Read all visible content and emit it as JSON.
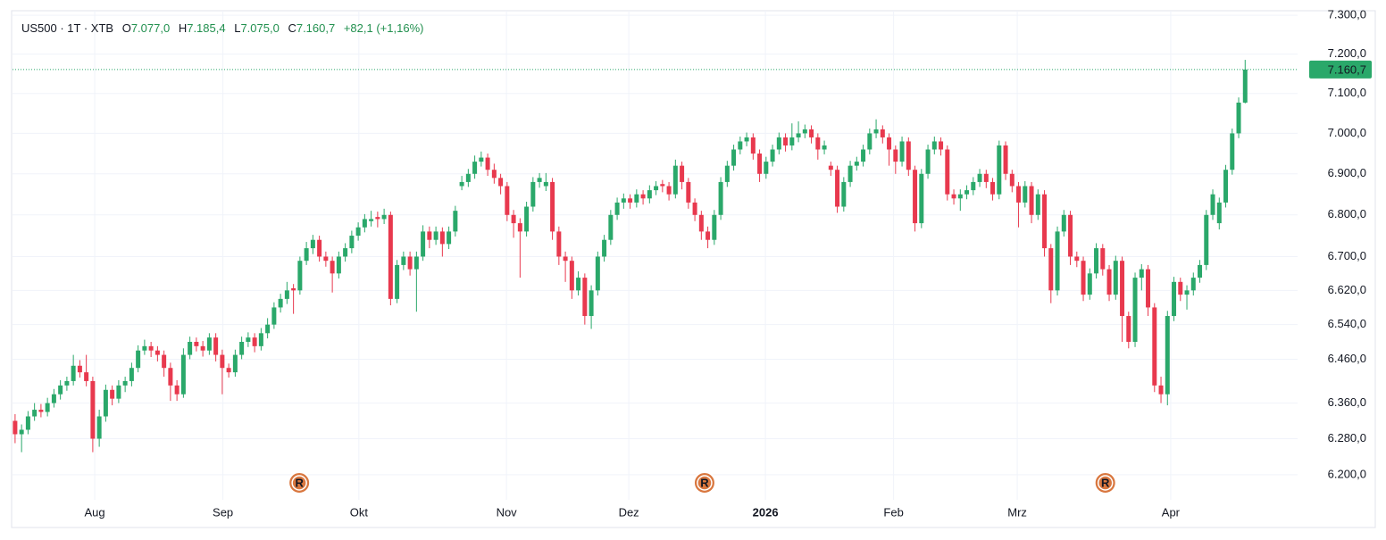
{
  "chart_data": {
    "type": "candlestick",
    "legend": {
      "symbol": "US500 · 1T · XTB",
      "o_key": "O",
      "o": "7.077,0",
      "h_key": "H",
      "h": "7.185,4",
      "l_key": "L",
      "l": "7.075,0",
      "c_key": "C",
      "c": "7.160,7",
      "change": "+82,1 (+1,16%)"
    },
    "last_price_label": "7.160,7",
    "up_color": "#2aa86a",
    "down_color": "#e8394e",
    "log_scale": true,
    "grid": true,
    "ylim": [
      6145,
      7312
    ],
    "yticks": [
      {
        "value": 6200,
        "label": "6.200,0"
      },
      {
        "value": 6280,
        "label": "6.280,0"
      },
      {
        "value": 6360,
        "label": "6.360,0"
      },
      {
        "value": 6460,
        "label": "6.460,0"
      },
      {
        "value": 6540,
        "label": "6.540,0"
      },
      {
        "value": 6620,
        "label": "6.620,0"
      },
      {
        "value": 6700,
        "label": "6.700,0"
      },
      {
        "value": 6800,
        "label": "6.800,0"
      },
      {
        "value": 6900,
        "label": "6.900,0"
      },
      {
        "value": 7000,
        "label": "7.000,0"
      },
      {
        "value": 7100,
        "label": "7.100,0"
      },
      {
        "value": 7200,
        "label": "7.200,0"
      },
      {
        "value": 7300,
        "label": "7.300,0"
      }
    ],
    "xlim": [
      -0.4,
      198.1
    ],
    "xticks": [
      {
        "value": 12.3,
        "label": "Aug"
      },
      {
        "value": 32.1,
        "label": "Sep"
      },
      {
        "value": 53.1,
        "label": "Okt"
      },
      {
        "value": 75.9,
        "label": "Nov"
      },
      {
        "value": 94.8,
        "label": "Dez"
      },
      {
        "value": 115.9,
        "label": "2026",
        "bold": true
      },
      {
        "value": 135.7,
        "label": "Feb"
      },
      {
        "value": 154.8,
        "label": "Mrz"
      },
      {
        "value": 178.5,
        "label": "Apr"
      }
    ],
    "events": [
      {
        "x": 43.9,
        "label": "R"
      },
      {
        "x": 106.5,
        "label": "R"
      },
      {
        "x": 168.4,
        "label": "R"
      }
    ],
    "ohlc": [
      [
        6320,
        6335,
        6270,
        6290
      ],
      [
        6290,
        6312,
        6250,
        6300
      ],
      [
        6300,
        6342,
        6290,
        6330
      ],
      [
        6330,
        6360,
        6320,
        6345
      ],
      [
        6345,
        6358,
        6328,
        6340
      ],
      [
        6340,
        6372,
        6330,
        6360
      ],
      [
        6360,
        6392,
        6350,
        6380
      ],
      [
        6380,
        6412,
        6368,
        6400
      ],
      [
        6400,
        6420,
        6388,
        6410
      ],
      [
        6410,
        6470,
        6400,
        6445
      ],
      [
        6445,
        6458,
        6418,
        6430
      ],
      [
        6430,
        6470,
        6398,
        6410
      ],
      [
        6410,
        6420,
        6250,
        6280
      ],
      [
        6280,
        6345,
        6262,
        6330
      ],
      [
        6330,
        6402,
        6318,
        6390
      ],
      [
        6390,
        6400,
        6355,
        6370
      ],
      [
        6370,
        6412,
        6360,
        6400
      ],
      [
        6400,
        6420,
        6385,
        6410
      ],
      [
        6410,
        6452,
        6398,
        6440
      ],
      [
        6440,
        6492,
        6430,
        6480
      ],
      [
        6480,
        6505,
        6470,
        6490
      ],
      [
        6490,
        6500,
        6465,
        6480
      ],
      [
        6480,
        6490,
        6455,
        6470
      ],
      [
        6470,
        6480,
        6420,
        6440
      ],
      [
        6440,
        6452,
        6365,
        6400
      ],
      [
        6400,
        6412,
        6365,
        6380
      ],
      [
        6380,
        6485,
        6372,
        6470
      ],
      [
        6470,
        6512,
        6460,
        6500
      ],
      [
        6500,
        6510,
        6478,
        6490
      ],
      [
        6490,
        6502,
        6466,
        6480
      ],
      [
        6480,
        6520,
        6470,
        6510
      ],
      [
        6510,
        6520,
        6455,
        6470
      ],
      [
        6470,
        6482,
        6380,
        6440
      ],
      [
        6440,
        6450,
        6418,
        6430
      ],
      [
        6430,
        6482,
        6420,
        6470
      ],
      [
        6470,
        6512,
        6460,
        6500
      ],
      [
        6500,
        6522,
        6488,
        6510
      ],
      [
        6510,
        6520,
        6476,
        6490
      ],
      [
        6490,
        6532,
        6480,
        6520
      ],
      [
        6520,
        6555,
        6508,
        6540
      ],
      [
        6540,
        6592,
        6530,
        6580
      ],
      [
        6580,
        6612,
        6568,
        6600
      ],
      [
        6600,
        6640,
        6588,
        6620
      ],
      [
        6625,
        6635,
        6565,
        6620
      ],
      [
        6620,
        6700,
        6610,
        6690
      ],
      [
        6690,
        6735,
        6680,
        6720
      ],
      [
        6720,
        6752,
        6706,
        6740
      ],
      [
        6740,
        6750,
        6688,
        6700
      ],
      [
        6700,
        6712,
        6676,
        6690
      ],
      [
        6690,
        6700,
        6615,
        6660
      ],
      [
        6660,
        6712,
        6648,
        6700
      ],
      [
        6700,
        6732,
        6688,
        6720
      ],
      [
        6720,
        6762,
        6708,
        6750
      ],
      [
        6750,
        6782,
        6738,
        6770
      ],
      [
        6770,
        6802,
        6758,
        6790
      ],
      [
        6785,
        6810,
        6772,
        6790
      ],
      [
        6795,
        6808,
        6770,
        6790
      ],
      [
        6790,
        6815,
        6778,
        6800
      ],
      [
        6800,
        6808,
        6585,
        6600
      ],
      [
        6600,
        6692,
        6590,
        6680
      ],
      [
        6680,
        6712,
        6668,
        6700
      ],
      [
        6700,
        6712,
        6655,
        6670
      ],
      [
        6670,
        6712,
        6570,
        6700
      ],
      [
        6700,
        6775,
        6690,
        6760
      ],
      [
        6760,
        6772,
        6720,
        6740
      ],
      [
        6740,
        6772,
        6728,
        6760
      ],
      [
        6760,
        6770,
        6700,
        6730
      ],
      [
        6730,
        6772,
        6718,
        6760
      ],
      [
        6760,
        6822,
        6748,
        6810
      ],
      [
        6870,
        6895,
        6860,
        6880
      ],
      [
        6880,
        6912,
        6868,
        6900
      ],
      [
        6900,
        6945,
        6888,
        6930
      ],
      [
        6930,
        6955,
        6918,
        6940
      ],
      [
        6940,
        6950,
        6895,
        6910
      ],
      [
        6910,
        6925,
        6876,
        6890
      ],
      [
        6890,
        6900,
        6850,
        6870
      ],
      [
        6870,
        6880,
        6785,
        6800
      ],
      [
        6800,
        6812,
        6745,
        6780
      ],
      [
        6780,
        6792,
        6650,
        6760
      ],
      [
        6760,
        6832,
        6748,
        6820
      ],
      [
        6820,
        6892,
        6808,
        6880
      ],
      [
        6880,
        6902,
        6866,
        6890
      ],
      [
        6870,
        6902,
        6858,
        6880
      ],
      [
        6880,
        6890,
        6740,
        6760
      ],
      [
        6760,
        6772,
        6680,
        6700
      ],
      [
        6700,
        6712,
        6640,
        6690
      ],
      [
        6690,
        6700,
        6600,
        6620
      ],
      [
        6620,
        6665,
        6608,
        6650
      ],
      [
        6650,
        6660,
        6540,
        6560
      ],
      [
        6560,
        6632,
        6530,
        6620
      ],
      [
        6620,
        6712,
        6608,
        6700
      ],
      [
        6700,
        6752,
        6688,
        6740
      ],
      [
        6740,
        6812,
        6728,
        6800
      ],
      [
        6800,
        6842,
        6788,
        6830
      ],
      [
        6830,
        6852,
        6815,
        6840
      ],
      [
        6840,
        6850,
        6815,
        6830
      ],
      [
        6830,
        6862,
        6818,
        6850
      ],
      [
        6850,
        6860,
        6825,
        6840
      ],
      [
        6840,
        6872,
        6828,
        6860
      ],
      [
        6860,
        6882,
        6848,
        6870
      ],
      [
        6875,
        6885,
        6855,
        6870
      ],
      [
        6870,
        6880,
        6835,
        6850
      ],
      [
        6850,
        6935,
        6840,
        6920
      ],
      [
        6920,
        6930,
        6862,
        6880
      ],
      [
        6880,
        6890,
        6815,
        6830
      ],
      [
        6830,
        6840,
        6785,
        6800
      ],
      [
        6800,
        6810,
        6740,
        6760
      ],
      [
        6760,
        6772,
        6720,
        6740
      ],
      [
        6740,
        6812,
        6728,
        6800
      ],
      [
        6800,
        6892,
        6788,
        6880
      ],
      [
        6880,
        6932,
        6868,
        6920
      ],
      [
        6920,
        6972,
        6908,
        6960
      ],
      [
        6960,
        6992,
        6948,
        6980
      ],
      [
        6980,
        7002,
        6968,
        6990
      ],
      [
        6990,
        7000,
        6935,
        6950
      ],
      [
        6950,
        6960,
        6880,
        6900
      ],
      [
        6900,
        6942,
        6888,
        6930
      ],
      [
        6930,
        6972,
        6918,
        6960
      ],
      [
        6960,
        7002,
        6948,
        6990
      ],
      [
        6990,
        7000,
        6955,
        6970
      ],
      [
        6970,
        7025,
        6958,
        6990
      ],
      [
        6990,
        7030,
        6978,
        7000
      ],
      [
        7000,
        7022,
        6988,
        7010
      ],
      [
        7010,
        7020,
        6975,
        6990
      ],
      [
        6990,
        7000,
        6935,
        6960
      ],
      [
        6960,
        6982,
        6948,
        6970
      ],
      [
        6920,
        6930,
        6895,
        6910
      ],
      [
        6910,
        6920,
        6805,
        6820
      ],
      [
        6820,
        6892,
        6808,
        6880
      ],
      [
        6880,
        6932,
        6868,
        6920
      ],
      [
        6920,
        6942,
        6908,
        6930
      ],
      [
        6930,
        6972,
        6918,
        6960
      ],
      [
        6960,
        7012,
        6948,
        7000
      ],
      [
        7000,
        7035,
        6988,
        7010
      ],
      [
        7010,
        7020,
        6975,
        6990
      ],
      [
        6990,
        7000,
        6920,
        6960
      ],
      [
        6960,
        6970,
        6900,
        6930
      ],
      [
        6930,
        6992,
        6918,
        6980
      ],
      [
        6980,
        6990,
        6895,
        6910
      ],
      [
        6910,
        6920,
        6760,
        6780
      ],
      [
        6780,
        6912,
        6768,
        6900
      ],
      [
        6900,
        6972,
        6888,
        6960
      ],
      [
        6960,
        6992,
        6948,
        6980
      ],
      [
        6980,
        6990,
        6945,
        6960
      ],
      [
        6960,
        6970,
        6835,
        6850
      ],
      [
        6850,
        6862,
        6825,
        6840
      ],
      [
        6840,
        6862,
        6810,
        6850
      ],
      [
        6850,
        6872,
        6838,
        6860
      ],
      [
        6860,
        6892,
        6848,
        6880
      ],
      [
        6880,
        6912,
        6868,
        6900
      ],
      [
        6900,
        6910,
        6865,
        6880
      ],
      [
        6880,
        6890,
        6835,
        6850
      ],
      [
        6850,
        6982,
        6838,
        6970
      ],
      [
        6970,
        6980,
        6885,
        6900
      ],
      [
        6900,
        6910,
        6855,
        6870
      ],
      [
        6870,
        6880,
        6770,
        6830
      ],
      [
        6830,
        6882,
        6818,
        6870
      ],
      [
        6870,
        6880,
        6780,
        6800
      ],
      [
        6800,
        6862,
        6788,
        6850
      ],
      [
        6850,
        6860,
        6700,
        6720
      ],
      [
        6720,
        6730,
        6590,
        6620
      ],
      [
        6620,
        6772,
        6608,
        6760
      ],
      [
        6760,
        6812,
        6748,
        6800
      ],
      [
        6800,
        6810,
        6680,
        6700
      ],
      [
        6700,
        6712,
        6675,
        6690
      ],
      [
        6690,
        6700,
        6595,
        6610
      ],
      [
        6610,
        6672,
        6598,
        6660
      ],
      [
        6660,
        6732,
        6648,
        6720
      ],
      [
        6720,
        6730,
        6655,
        6670
      ],
      [
        6670,
        6680,
        6595,
        6610
      ],
      [
        6610,
        6702,
        6598,
        6690
      ],
      [
        6690,
        6700,
        6500,
        6560
      ],
      [
        6560,
        6570,
        6485,
        6500
      ],
      [
        6500,
        6662,
        6488,
        6650
      ],
      [
        6650,
        6682,
        6620,
        6670
      ],
      [
        6670,
        6680,
        6560,
        6580
      ],
      [
        6580,
        6590,
        6385,
        6400
      ],
      [
        6400,
        6420,
        6360,
        6380
      ],
      [
        6380,
        6572,
        6355,
        6560
      ],
      [
        6560,
        6652,
        6548,
        6640
      ],
      [
        6640,
        6650,
        6595,
        6610
      ],
      [
        6610,
        6632,
        6575,
        6620
      ],
      [
        6620,
        6662,
        6608,
        6650
      ],
      [
        6650,
        6692,
        6638,
        6680
      ],
      [
        6680,
        6812,
        6668,
        6800
      ],
      [
        6800,
        6862,
        6788,
        6850
      ],
      [
        6780,
        6842,
        6765,
        6830
      ],
      [
        6830,
        6922,
        6818,
        6910
      ],
      [
        6910,
        7012,
        6898,
        7000
      ],
      [
        7000,
        7090,
        6988,
        7077
      ],
      [
        7077,
        7185.4,
        7075,
        7160.7
      ]
    ]
  }
}
